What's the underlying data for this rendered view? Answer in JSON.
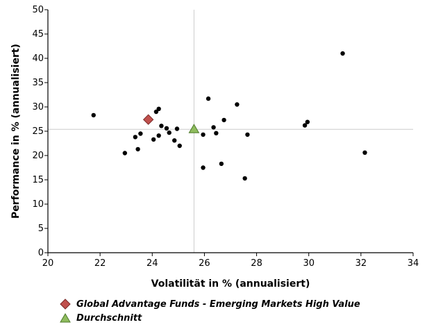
{
  "chart_data": {
    "type": "scatter",
    "title": "",
    "xlabel": "Volatilität in % (annualisiert)",
    "ylabel": "Performance in % (annualisiert)",
    "xlim": [
      20,
      34
    ],
    "ylim": [
      0,
      50
    ],
    "xticks": [
      20,
      22,
      24,
      26,
      28,
      30,
      32,
      34
    ],
    "yticks": [
      0,
      5,
      10,
      15,
      20,
      25,
      30,
      35,
      40,
      45,
      50
    ],
    "grid": false,
    "legend_placement": "bottom",
    "colors": {
      "points": "#000000",
      "highlight": "#c0504d",
      "average": "#8fbc5e",
      "crosshair": "#cccccc"
    },
    "series": [
      {
        "values": [
          [
            21.75,
            28.3
          ],
          [
            22.95,
            20.5
          ],
          [
            23.35,
            23.8
          ],
          [
            23.45,
            21.3
          ],
          [
            23.55,
            24.5
          ],
          [
            24.05,
            23.3
          ],
          [
            24.15,
            29.0
          ],
          [
            24.25,
            29.6
          ],
          [
            24.25,
            24.1
          ],
          [
            24.35,
            26.1
          ],
          [
            24.55,
            25.6
          ],
          [
            24.65,
            24.7
          ],
          [
            24.85,
            23.1
          ],
          [
            24.95,
            25.5
          ],
          [
            25.05,
            22.0
          ],
          [
            25.95,
            24.3
          ],
          [
            25.95,
            17.5
          ],
          [
            26.15,
            31.7
          ],
          [
            26.35,
            25.8
          ],
          [
            26.45,
            24.6
          ],
          [
            26.65,
            18.3
          ],
          [
            26.75,
            27.3
          ],
          [
            27.25,
            30.5
          ],
          [
            27.55,
            15.3
          ],
          [
            27.65,
            24.3
          ],
          [
            29.85,
            26.2
          ],
          [
            29.95,
            26.9
          ],
          [
            31.3,
            41.0
          ],
          [
            32.15,
            20.6
          ]
        ]
      },
      {
        "name": "Global Advantage Funds - Emerging Markets High Value",
        "marker": "diamond",
        "values": [
          [
            23.85,
            27.4
          ]
        ]
      },
      {
        "name": "Durchschnitt",
        "marker": "triangle",
        "values": [
          [
            25.6,
            25.4
          ]
        ]
      }
    ],
    "crosshair": {
      "x": 25.6,
      "y": 25.4
    }
  }
}
